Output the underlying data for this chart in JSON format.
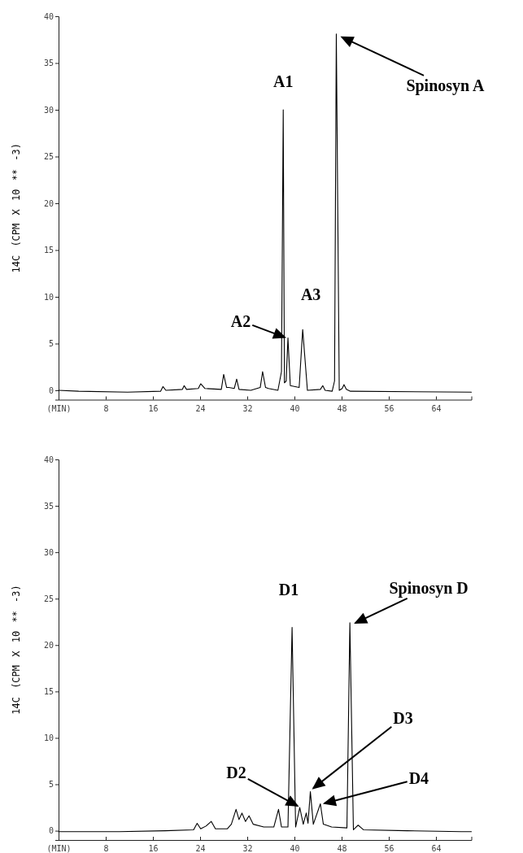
{
  "chart_data": [
    {
      "type": "line",
      "ylabel": "14C (CPM X 10 ** -3)",
      "xlim": [
        0,
        70
      ],
      "ylim": [
        -1,
        40
      ],
      "xticks": [
        {
          "value": 0,
          "label": "(MIN)"
        },
        8,
        16,
        24,
        32,
        40,
        48,
        56,
        64
      ],
      "yticks": [
        0,
        5,
        10,
        15,
        20,
        25,
        30,
        35,
        40
      ],
      "series": [
        {
          "color": "#000000",
          "x": [
            0,
            3.4,
            11.7,
            17.3,
            17.7,
            18.2,
            21.0,
            21.3,
            21.7,
            23.7,
            24.1,
            24.8,
            27.6,
            28.0,
            28.5,
            28.9,
            29.8,
            30.2,
            30.6,
            32.6,
            34.2,
            34.6,
            35.1,
            35.6,
            37.2,
            37.8,
            38.1,
            38.3,
            38.6,
            38.9,
            39.3,
            40.8,
            41.4,
            42.2,
            44.4,
            44.8,
            45.2,
            46.4,
            46.8,
            47.1,
            47.6,
            48.1,
            48.4,
            48.8,
            49.5,
            70
          ],
          "values": [
            0,
            -0.1,
            -0.2,
            -0.1,
            0.4,
            0,
            0.1,
            0.5,
            0.1,
            0.2,
            0.7,
            0.2,
            0.1,
            1.7,
            0.3,
            0.3,
            0.2,
            1.2,
            0.1,
            0,
            0.3,
            2.0,
            0.3,
            0.2,
            0,
            2.0,
            30.0,
            0.8,
            1.0,
            5.6,
            0.5,
            0.3,
            6.5,
            0,
            0.1,
            0.5,
            0,
            -0.1,
            1.0,
            38.1,
            0,
            0.2,
            0.6,
            0.1,
            -0.1,
            -0.2
          ]
        }
      ],
      "annotations": [
        {
          "text": "A1",
          "x": 38.1,
          "y": 30.0
        },
        {
          "text": "A2",
          "x": 38.9,
          "y": 5.6
        },
        {
          "text": "A3",
          "x": 41.4,
          "y": 6.5
        },
        {
          "text": "Spinosyn A",
          "x": 47.1,
          "y": 38.1
        }
      ]
    },
    {
      "type": "line",
      "ylabel": "14C (CPM X 10 ** -3)",
      "xlim": [
        0,
        70
      ],
      "ylim": [
        -1,
        40
      ],
      "xticks": [
        {
          "value": 0,
          "label": "(MIN)"
        },
        8,
        16,
        24,
        32,
        40,
        48,
        56,
        64
      ],
      "yticks": [
        0,
        5,
        10,
        15,
        20,
        25,
        30,
        35,
        40
      ],
      "series": [
        {
          "color": "#000000",
          "x": [
            0,
            10.3,
            18.1,
            22.9,
            23.5,
            24.1,
            25.0,
            25.9,
            26.6,
            28.6,
            29.3,
            30.1,
            30.6,
            31.1,
            31.7,
            32.3,
            33.0,
            34.8,
            36.5,
            37.3,
            37.8,
            38.9,
            39.6,
            40.2,
            40.9,
            41.5,
            42.0,
            42.3,
            42.7,
            43.2,
            44.4,
            44.9,
            46.3,
            48.9,
            49.4,
            50.0,
            50.8,
            51.7,
            59.1,
            68.3,
            70
          ],
          "values": [
            -0.1,
            -0.1,
            0,
            0.1,
            0.8,
            0.2,
            0.5,
            1.0,
            0.2,
            0.2,
            0.7,
            2.3,
            1.2,
            1.9,
            1.0,
            1.6,
            0.7,
            0.4,
            0.4,
            2.3,
            0.4,
            0.4,
            21.9,
            0.4,
            2.5,
            0.7,
            1.9,
            0.8,
            4.2,
            0.7,
            2.9,
            0.7,
            0.4,
            0.3,
            22.4,
            0.1,
            0.6,
            0.1,
            0,
            -0.1,
            -0.1
          ]
        }
      ],
      "annotations": [
        {
          "text": "D1",
          "x": 39.6,
          "y": 21.9
        },
        {
          "text": "Spinosyn D",
          "x": 49.4,
          "y": 22.4
        },
        {
          "text": "D2",
          "x": 40.9,
          "y": 2.5
        },
        {
          "text": "D3",
          "x": 42.7,
          "y": 4.2
        },
        {
          "text": "D4",
          "x": 44.4,
          "y": 2.9
        }
      ]
    }
  ]
}
